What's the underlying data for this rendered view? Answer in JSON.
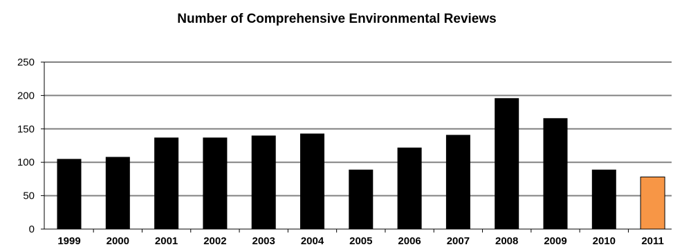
{
  "chart_data": {
    "type": "bar",
    "title": "Number of Comprehensive Environmental Reviews",
    "xlabel": "",
    "ylabel": "",
    "categories": [
      "1999",
      "2000",
      "2001",
      "2002",
      "2003",
      "2004",
      "2005",
      "2006",
      "2007",
      "2008",
      "2009",
      "2010",
      "2011"
    ],
    "values": [
      105,
      108,
      137,
      137,
      140,
      143,
      89,
      122,
      141,
      196,
      166,
      89,
      78
    ],
    "ylim": [
      0,
      250
    ],
    "yticks": [
      "0",
      "50",
      "100",
      "150",
      "200",
      "250"
    ],
    "grid": true,
    "bar_color": "#000000",
    "highlight_index": 12,
    "highlight_color": "#F79646",
    "gridline_color": "#808080"
  }
}
